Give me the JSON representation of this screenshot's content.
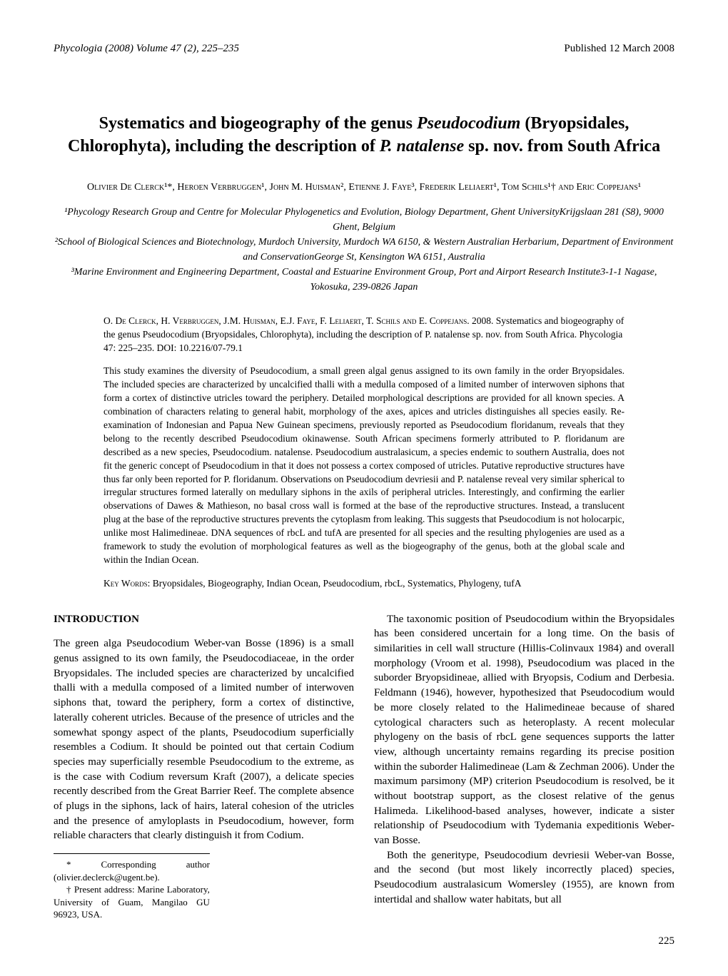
{
  "header": {
    "left": "Phycologia (2008) Volume 47 (2), 225–235",
    "right": "Published 12 March 2008"
  },
  "title_parts": {
    "t1": "Systematics and biogeography of the genus ",
    "t2": "Pseudocodium",
    "t3": " (Bryopsidales, Chlorophyta), including the description of ",
    "t4": "P. natalense",
    "t5": " sp. nov. from South Africa"
  },
  "authors_line": "Olivier De Clerck¹*, Heroen Verbruggen¹, John M. Huisman², Etienne J. Faye³, Frederik Leliaert¹, Tom Schils¹† and Eric Coppejans¹",
  "affiliations": {
    "a1": "¹Phycology Research Group and Centre for Molecular Phylogenetics and Evolution, Biology Department, Ghent UniversityKrijgslaan 281 (S8), 9000 Ghent, Belgium",
    "a2": "²School of Biological Sciences and Biotechnology, Murdoch University, Murdoch WA 6150, & Western Australian Herbarium, Department of Environment and ConservationGeorge St, Kensington WA 6151, Australia",
    "a3": "³Marine Environment and Engineering Department, Coastal and Estuarine Environment Group, Port and Airport Research Institute3-1-1 Nagase, Yokosuka, 239-0826 Japan"
  },
  "citation": {
    "authors_sc": "O. De Clerck, H. Verbruggen, J.M. Huisman, E.J. Faye, F. Leliaert, T. Schils and E. Coppejans.",
    "rest": " 2008. Systematics and biogeography of the genus Pseudocodium (Bryopsidales, Chlorophyta), including the description of P. natalense sp. nov. from South Africa. Phycologia 47: 225–235. DOI: 10.2216/07-79.1"
  },
  "abstract": "This study examines the diversity of Pseudocodium, a small green algal genus assigned to its own family in the order Bryopsidales. The included species are characterized by uncalcified thalli with a medulla composed of a limited number of interwoven siphons that form a cortex of distinctive utricles toward the periphery. Detailed morphological descriptions are provided for all known species. A combination of characters relating to general habit, morphology of the axes, apices and utricles distinguishes all species easily. Re-examination of Indonesian and Papua New Guinean specimens, previously reported as Pseudocodium floridanum, reveals that they belong to the recently described Pseudocodium okinawense. South African specimens formerly attributed to P. floridanum are described as a new species, Pseudocodium. natalense. Pseudocodium australasicum, a species endemic to southern Australia, does not fit the generic concept of Pseudocodium in that it does not possess a cortex composed of utricles. Putative reproductive structures have thus far only been reported for P. floridanum. Observations on Pseudocodium devriesii and P. natalense reveal very similar spherical to irregular structures formed laterally on medullary siphons in the axils of peripheral utricles. Interestingly, and confirming the earlier observations of Dawes & Mathieson, no basal cross wall is formed at the base of the reproductive structures. Instead, a translucent plug at the base of the reproductive structures prevents the cytoplasm from leaking. This suggests that Pseudocodium is not holocarpic, unlike most Halimedineae. DNA sequences of rbcL and tufA are presented for all species and the resulting phylogenies are used as a framework to study the evolution of morphological features as well as the biogeography of the genus, both at the global scale and within the Indian Ocean.",
  "keywords": {
    "label": "Key Words:",
    "list": " Bryopsidales, Biogeography, Indian Ocean, Pseudocodium, rbcL, Systematics, Phylogeny, tufA"
  },
  "introduction_head": "INTRODUCTION",
  "col_left_p1": "The green alga Pseudocodium Weber-van Bosse (1896) is a small genus assigned to its own family, the Pseudocodiaceae, in the order Bryopsidales. The included species are characterized by uncalcified thalli with a medulla composed of a limited number of interwoven siphons that, toward the periphery, form a cortex of distinctive, laterally coherent utricles. Because of the presence of utricles and the somewhat spongy aspect of the plants, Pseudocodium superficially resembles a Codium. It should be pointed out that certain Codium species may superficially resemble Pseudocodium to the extreme, as is the case with Codium reversum Kraft (2007), a delicate species recently described from the Great Barrier Reef. The complete absence of plugs in the siphons, lack of hairs, lateral cohesion of the utricles and the presence of amyloplasts in Pseudocodium, however, form reliable characters that clearly distinguish it from Codium.",
  "col_right_p1": "The taxonomic position of Pseudocodium within the Bryopsidales has been considered uncertain for a long time. On the basis of similarities in cell wall structure (Hillis-Colinvaux 1984) and overall morphology (Vroom et al. 1998), Pseudocodium was placed in the suborder Bryopsidineae, allied with Bryopsis, Codium and Derbesia. Feldmann (1946), however, hypothesized that Pseudocodium would be more closely related to the Halimedineae because of shared cytological characters such as heteroplasty. A recent molecular phylogeny on the basis of rbcL gene sequences supports the latter view, although uncertainty remains regarding its precise position within the suborder Halimedineae (Lam & Zechman 2006). Under the maximum parsimony (MP) criterion Pseudocodium is resolved, be it without bootstrap support, as the closest relative of the genus Halimeda. Likelihood-based analyses, however, indicate a sister relationship of Pseudocodium with Tydemania expeditionis Weber-van Bosse.",
  "col_right_p2": "Both the generitype, Pseudocodium devriesii Weber-van Bosse, and the second (but most likely incorrectly placed) species, Pseudocodium australasicum Womersley (1955), are known from intertidal and shallow water habitats, but all",
  "footnotes": {
    "f1": "* Corresponding author (olivier.declerck@ugent.be).",
    "f2": "† Present address: Marine Laboratory, University of Guam, Mangilao GU 96923, USA."
  },
  "page_number": "225"
}
